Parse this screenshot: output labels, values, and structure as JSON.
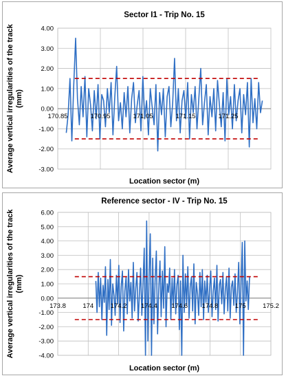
{
  "chart_data": [
    {
      "type": "line",
      "title": "Sector I1 - Trip No. 15",
      "xlabel": "Location sector (m)",
      "ylabel": "Average vertical irregularities of the track (mm)",
      "ylabel_lines": [
        "Average vertical irregularities of the track",
        "(mm)"
      ],
      "xlim": [
        170.85,
        171.35
      ],
      "ylim": [
        -3.0,
        4.0
      ],
      "x_ticks": [
        "170.85",
        "170.95",
        "171.05",
        "171.15",
        "171.25"
      ],
      "x_tick_values": [
        170.85,
        170.95,
        171.05,
        171.15,
        171.25
      ],
      "y_ticks": [
        "4.00",
        "3.00",
        "2.00",
        "1.00",
        "0.00",
        "-1.00",
        "-2.00",
        "-3.00"
      ],
      "y_tick_values": [
        4,
        3,
        2,
        1,
        0,
        -1,
        -2,
        -3
      ],
      "grid": true,
      "series": [
        {
          "color": "#2f6fc4",
          "x_start": 170.87,
          "x_end": 171.33,
          "values": [
            -1.2,
            -0.3,
            1.5,
            -1.6,
            1.2,
            3.5,
            0.5,
            -0.8,
            1.1,
            -0.4,
            1.6,
            -1.4,
            1.0,
            0.2,
            -1.1,
            0.9,
            -0.5,
            1.2,
            -1.5,
            0.7,
            0.4,
            -0.9,
            1.0,
            -0.2,
            1.3,
            -1.3,
            0.6,
            2.1,
            -0.6,
            0.3,
            -1.0,
            0.8,
            -0.4,
            1.1,
            -1.2,
            0.5,
            1.3,
            -0.7,
            0.2,
            0.9,
            -1.1,
            1.6,
            -0.5,
            0.4,
            -1.3,
            1.0,
            0.1,
            -0.8,
            1.2,
            -2.1,
            0.8,
            -0.3,
            1.0,
            -1.4,
            0.6,
            1.1,
            -0.9,
            0.3,
            2.5,
            -0.6,
            1.0,
            -1.2,
            0.4,
            0.9,
            -0.5,
            1.3,
            -1.5,
            0.7,
            -0.2,
            1.1,
            -1.0,
            0.5,
            2.0,
            -0.8,
            0.3,
            1.2,
            -1.3,
            0.6,
            -0.4,
            1.0,
            -1.1,
            1.4,
            0.2,
            -0.9,
            0.8,
            -1.6,
            1.5,
            -0.3,
            0.6,
            -1.0,
            1.2,
            -0.6,
            0.4,
            1.0,
            -1.2,
            0.7,
            -0.3,
            1.3,
            -1.9,
            1.5,
            -0.7,
            0.5,
            -1.0,
            1.3,
            -0.2,
            0.4
          ]
        },
        {
          "color": "#c00000",
          "style": "dashed",
          "constant": 1.5
        },
        {
          "color": "#c00000",
          "style": "dashed",
          "constant": -1.5
        }
      ]
    },
    {
      "type": "line",
      "title": "Reference sector - IV - Trip No. 15",
      "xlabel": "Location sector (m)",
      "ylabel": "Average vertical irregularities of the track (mm)",
      "ylabel_lines": [
        "Average vertical irregularities of the track",
        "(mm)"
      ],
      "xlim": [
        173.8,
        175.2
      ],
      "ylim": [
        -4.0,
        6.0
      ],
      "x_ticks": [
        "173.8",
        "174",
        "174.2",
        "174.4",
        "174.6",
        "174.8",
        "175",
        "175.2"
      ],
      "x_tick_values": [
        173.8,
        174.0,
        174.2,
        174.4,
        174.6,
        174.8,
        175.0,
        175.2
      ],
      "y_ticks": [
        "6.00",
        "5.00",
        "4.00",
        "3.00",
        "2.00",
        "1.00",
        "0.00",
        "-1.00",
        "-2.00",
        "-3.00",
        "-4.00"
      ],
      "y_tick_values": [
        6,
        5,
        4,
        3,
        2,
        1,
        0,
        -1,
        -2,
        -3,
        -4
      ],
      "grid": true,
      "series": [
        {
          "color": "#2f6fc4",
          "x_start": 174.05,
          "x_end": 175.06,
          "values": [
            1.2,
            -1.0,
            1.8,
            -0.6,
            1.4,
            -1.5,
            0.9,
            -0.3,
            2.2,
            -2.6,
            1.3,
            -0.8,
            2.7,
            -1.9,
            1.0,
            0.2,
            -1.2,
            1.6,
            -0.4,
            2.3,
            -1.7,
            0.8,
            1.9,
            -2.3,
            0.5,
            1.5,
            -1.1,
            2.0,
            -0.2,
            1.1,
            -1.4,
            2.5,
            -0.9,
            0.7,
            1.8,
            -1.6,
            0.3,
            2.1,
            -1.2,
            1.0,
            3.5,
            -4.0,
            5.4,
            -3.0,
            1.5,
            4.5,
            -4.0,
            2.8,
            -1.8,
            1.2,
            3.3,
            -2.5,
            0.6,
            2.6,
            -1.3,
            1.9,
            -0.7,
            3.6,
            -2.0,
            1.0,
            0.4,
            2.1,
            -1.5,
            1.4,
            -0.6,
            2.0,
            -1.1,
            0.9,
            1.6,
            -2.2,
            1.2,
            -4.0,
            3.0,
            -1.0,
            1.7,
            -0.5,
            2.2,
            -1.4,
            0.8,
            1.5,
            -0.9,
            2.4,
            -1.8,
            1.1,
            0.3,
            -1.2,
            1.8,
            -0.6,
            2.0,
            -1.5,
            1.2,
            -0.3,
            1.6,
            -1.0,
            0.7,
            1.9,
            -1.3,
            0.5,
            1.4,
            -0.8,
            2.3,
            -1.6,
            0.9,
            1.3,
            -0.4,
            1.8,
            -1.1,
            0.6,
            1.5,
            -0.9,
            2.1,
            -1.4,
            0.8,
            1.2,
            -0.5,
            1.7,
            -1.0,
            0.4,
            2.5,
            -1.8,
            1.1,
            3.9,
            -4.0,
            4.0,
            -0.2,
            1.2,
            -0.8,
            1.5
          ]
        },
        {
          "color": "#c00000",
          "style": "dashed",
          "constant": 1.5
        },
        {
          "color": "#c00000",
          "style": "dashed",
          "constant": -1.5
        }
      ]
    }
  ]
}
